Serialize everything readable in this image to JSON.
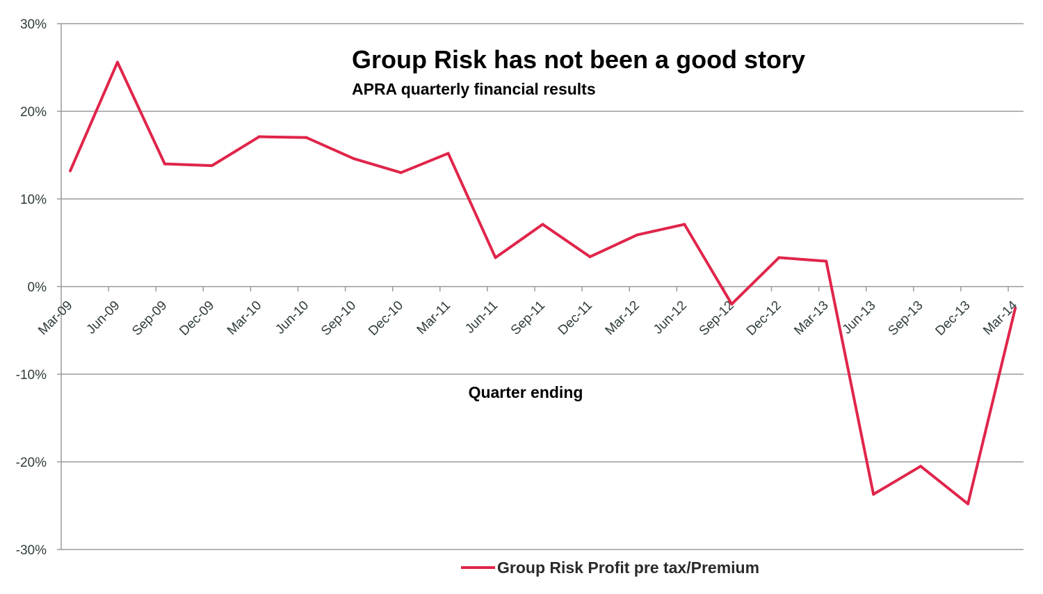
{
  "chart_data": {
    "type": "line",
    "title": "Group Risk has not been a good story",
    "subtitle": "APRA quarterly  financial results",
    "xlabel": "Quarter ending",
    "ylabel": "",
    "ylim": [
      -30,
      30
    ],
    "yticks": [
      30,
      20,
      10,
      0,
      -10,
      -20,
      -30
    ],
    "ytick_labels": [
      "30%",
      "20%",
      "10%",
      "0%",
      "-10%",
      "-20%",
      "-30%"
    ],
    "grid": true,
    "legend_position": "bottom",
    "categories": [
      "Mar-09",
      "Jun-09",
      "Sep-09",
      "Dec-09",
      "Mar-10",
      "Jun-10",
      "Sep-10",
      "Dec-10",
      "Mar-11",
      "Jun-11",
      "Sep-11",
      "Dec-11",
      "Mar-12",
      "Jun-12",
      "Sep-12",
      "Dec-12",
      "Mar-13",
      "Jun-13",
      "Sep-13",
      "Dec-13",
      "Mar-14"
    ],
    "series": [
      {
        "name": "Group Risk Profit pre tax/Premium",
        "color": "#e0254a",
        "values": [
          13.2,
          25.6,
          14.0,
          13.8,
          17.1,
          17.0,
          14.6,
          13.0,
          15.2,
          3.3,
          7.1,
          3.4,
          5.9,
          7.1,
          -2.0,
          3.3,
          2.9,
          -23.7,
          -20.5,
          -24.8,
          -2.5
        ]
      }
    ]
  }
}
